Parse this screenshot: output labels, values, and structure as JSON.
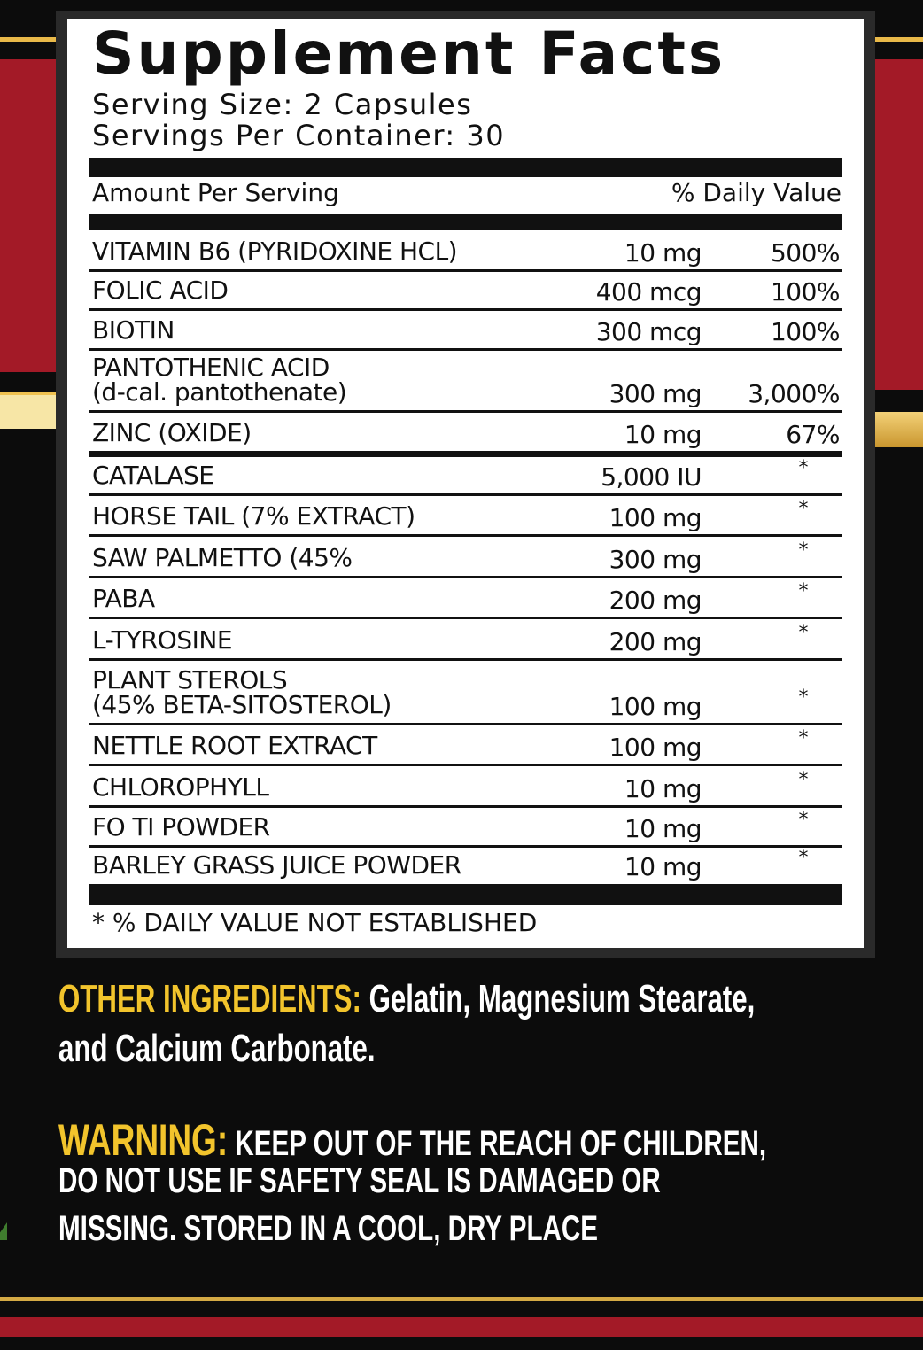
{
  "colors": {
    "red": "#a31a27",
    "gold": "#e9b949",
    "yellow_text": "#f2c42c",
    "background": "#0c0c0c"
  },
  "facts": {
    "title": "Supplement Facts",
    "serving_size": "Serving Size: 2 Capsules",
    "servings_per_container": "Servings Per Container: 30",
    "amount_header": "Amount Per Serving",
    "dv_header": "% Daily Value",
    "rows": [
      {
        "name": "VITAMIN B6 (PYRIDOXINE HCL)",
        "sub": "",
        "amount": "10 mg",
        "dv": "500%"
      },
      {
        "name": "FOLIC ACID",
        "sub": "",
        "amount": "400 mcg",
        "dv": "100%"
      },
      {
        "name": "BIOTIN",
        "sub": "",
        "amount": "300 mcg",
        "dv": "100%"
      },
      {
        "name": "PANTOTHENIC ACID",
        "sub": "(d-cal. pantothenate)",
        "amount": "300 mg",
        "dv": "3,000%"
      },
      {
        "name": "ZINC (OXIDE)",
        "sub": "",
        "amount": "10 mg",
        "dv": "67%"
      },
      {
        "name": "CATALASE",
        "sub": "",
        "amount": "5,000 IU",
        "dv": "*"
      },
      {
        "name": "HORSE TAIL (7% EXTRACT)",
        "sub": "",
        "amount": "100 mg",
        "dv": "*"
      },
      {
        "name": "SAW PALMETTO (45%",
        "sub": "",
        "amount": "300 mg",
        "dv": "*"
      },
      {
        "name": "PABA",
        "sub": "",
        "amount": "200 mg",
        "dv": "*"
      },
      {
        "name": "L-TYROSINE",
        "sub": "",
        "amount": "200 mg",
        "dv": "*"
      },
      {
        "name": "PLANT STEROLS",
        "sub": "(45% BETA-SITOSTEROL)",
        "amount": "100 mg",
        "dv": "*"
      },
      {
        "name": "NETTLE ROOT EXTRACT",
        "sub": "",
        "amount": "100 mg",
        "dv": "*"
      },
      {
        "name": "CHLOROPHYLL",
        "sub": "",
        "amount": "10 mg",
        "dv": "*"
      },
      {
        "name": "FO TI POWDER",
        "sub": "",
        "amount": "10 mg",
        "dv": "*"
      },
      {
        "name": "BARLEY GRASS JUICE POWDER",
        "sub": "",
        "amount": "10 mg",
        "dv": "*"
      }
    ],
    "footnote": "* % DAILY VALUE NOT ESTABLISHED"
  },
  "other_ingredients": {
    "label": "OTHER INGREDIENTS:",
    "line1": "Gelatin, Magnesium Stearate,",
    "line2": "and Calcium Carbonate."
  },
  "warning": {
    "label": "WARNING:",
    "line1": "KEEP OUT OF THE REACH OF CHILDREN,",
    "line2": "DO  NOT USE  IF  SAFETY SEAL  IS  DAMAGED  OR",
    "line3": "MISSING. STORED IN A COOL, DRY PLACE"
  }
}
